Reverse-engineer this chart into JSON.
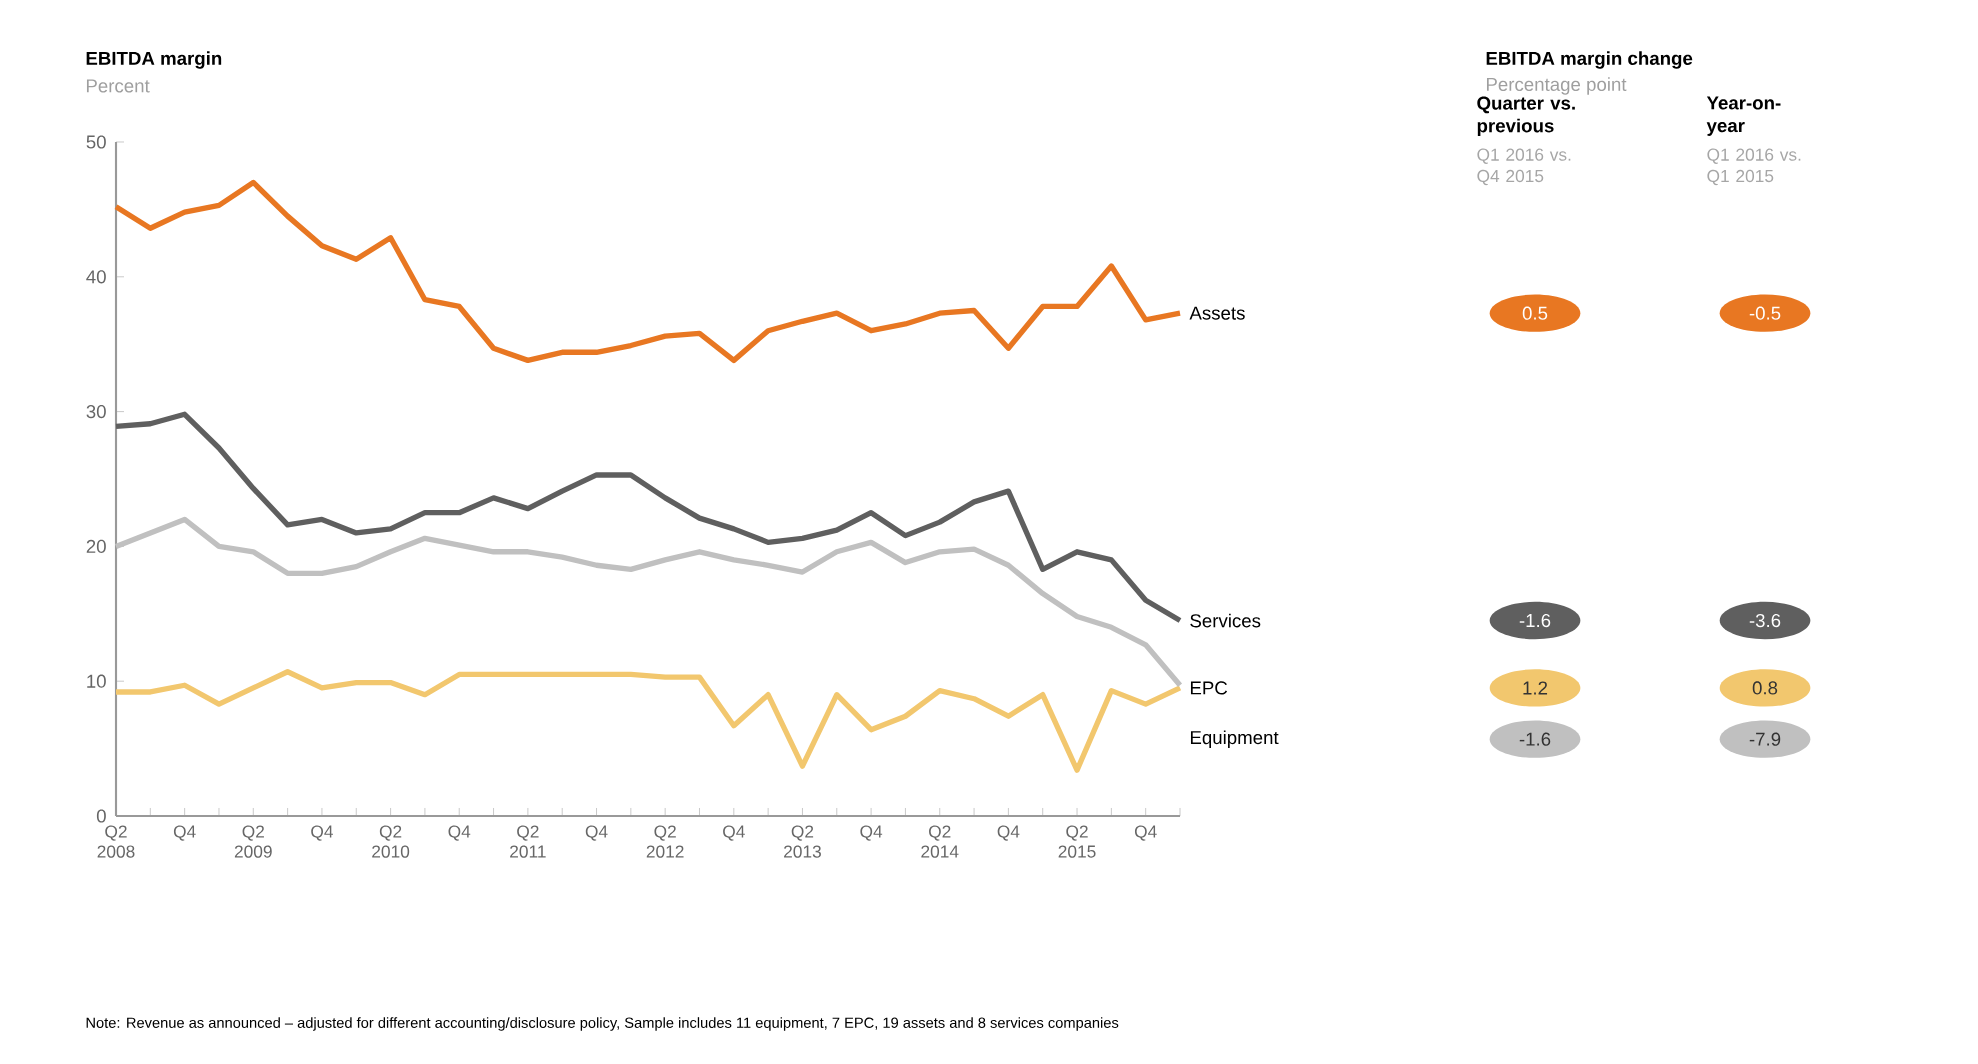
{
  "chart_data": [
    {
      "type": "line",
      "title": "EBITDA margin",
      "ylabel": "Percent",
      "marker": "none",
      "categories": [
        "Q2 2008",
        null,
        "Q4",
        null,
        "Q2 2009",
        null,
        "Q4",
        null,
        "Q2 2010",
        null,
        "Q4",
        null,
        "Q2 2011",
        null,
        "Q4",
        null,
        "Q2 2012",
        null,
        "Q4",
        null,
        "Q2 2013",
        null,
        "Q4",
        null,
        "Q2 2014",
        null,
        "Q4",
        null,
        "Q2 2015",
        null,
        "Q4",
        null
      ],
      "series": [
        {
          "name": "Assets",
          "color": "#e87722",
          "values": [
            45.2,
            43.6,
            44.8,
            45.3,
            47.0,
            44.5,
            42.3,
            41.3,
            42.9,
            38.3,
            37.8,
            34.7,
            33.8,
            34.4,
            34.4,
            34.9,
            35.6,
            35.8,
            33.8,
            36.0,
            36.7,
            37.3,
            36.0,
            36.5,
            37.3,
            37.5,
            34.7,
            37.8,
            37.8,
            40.8,
            36.8,
            37.3
          ]
        },
        {
          "name": "Services",
          "color": "#5f5f5f",
          "values": [
            28.9,
            29.1,
            29.8,
            27.3,
            24.3,
            21.6,
            22.0,
            21.0,
            21.3,
            22.5,
            22.5,
            23.6,
            22.8,
            24.1,
            25.3,
            25.3,
            23.6,
            22.1,
            21.3,
            20.3,
            20.6,
            21.2,
            22.5,
            20.8,
            21.8,
            23.3,
            24.1,
            18.3,
            19.6,
            19.0,
            16.0,
            14.5
          ]
        },
        {
          "name": "EPC",
          "color": "#f2c76e",
          "values": [
            9.2,
            9.2,
            9.7,
            8.3,
            9.5,
            10.7,
            9.5,
            9.9,
            9.9,
            9.0,
            10.5,
            10.5,
            10.5,
            10.5,
            10.5,
            10.5,
            10.3,
            10.3,
            6.7,
            9.0,
            3.7,
            9.0,
            6.4,
            7.4,
            9.3,
            8.7,
            7.4,
            9.0,
            3.4,
            9.3,
            8.3,
            9.5
          ]
        },
        {
          "name": "Equipment",
          "color": "#c0c0c0",
          "values": [
            20.0,
            21.0,
            22.0,
            20.0,
            19.6,
            18.0,
            18.0,
            18.5,
            19.6,
            20.6,
            20.1,
            19.6,
            19.6,
            19.2,
            18.6,
            18.3,
            19.0,
            19.6,
            19.0,
            18.6,
            18.1,
            19.6,
            20.3,
            18.8,
            19.6,
            19.8,
            18.6,
            16.5,
            14.8,
            14.0,
            12.7,
            9.7
          ]
        }
      ],
      "ylim": [
        0,
        50
      ],
      "yticks": [
        0,
        10,
        20,
        30,
        40,
        50
      ],
      "annotations": [
        "Note: Revenue as announced – adjusted for different accounting/disclosure policy, Sample includes 11 equipment, 7 EPC, 19 assets and 8 services companies"
      ]
    },
    {
      "type": "other",
      "title": "EBITDA margin change",
      "subtitle": "Percentage point",
      "data_labels": true,
      "categories": [
        "Quarter vs. previous",
        "Year-on-year"
      ],
      "annotations": [
        "Q1 2016 vs. Q4 2015",
        "Q1 2016 vs. Q1 2015"
      ],
      "series": [
        {
          "color": "#e87722",
          "values": [
            0.5,
            -0.5
          ]
        },
        {
          "color": "#5f5f5f",
          "values": [
            -1.6,
            -3.6
          ]
        },
        {
          "color": "#f2c76e",
          "values": [
            1.2,
            0.8
          ]
        },
        {
          "color": "#c0c0c0",
          "values": [
            -1.6,
            -7.9
          ]
        }
      ]
    }
  ]
}
